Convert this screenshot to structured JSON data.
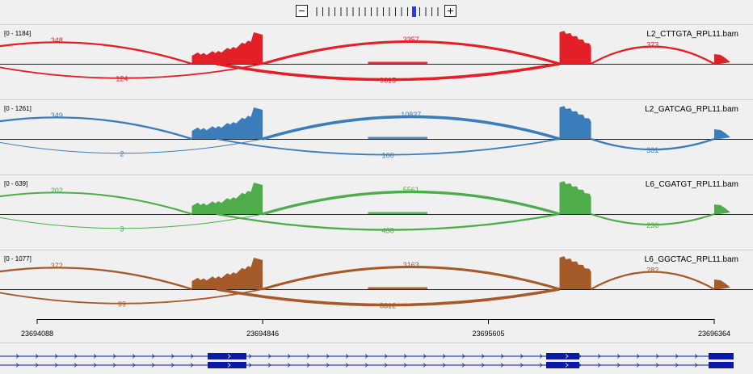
{
  "zoom": {
    "out_label": "−",
    "in_label": "+",
    "tick_count": 21,
    "current_level": 16,
    "accent": "#2a3dd6"
  },
  "tracks": [
    {
      "name": "L2_CTTGTA_RPL11.bam",
      "range": "[0 - 1184]",
      "color": "#e32028",
      "junctions_above": [
        {
          "label": "348",
          "from": 23693700,
          "to": 23694608
        },
        {
          "label": "3357",
          "from": 23694846,
          "to": 23695844
        },
        {
          "label": "373",
          "from": 23695950,
          "to": 23696364
        }
      ],
      "junctions_below": [
        {
          "label": "124",
          "from": 23693900,
          "to": 23694846
        },
        {
          "label": "9615",
          "from": 23694690,
          "to": 23695844
        }
      ]
    },
    {
      "name": "L2_GATCAG_RPL11.bam",
      "range": "[0 - 1261]",
      "color": "#3a7dba",
      "junctions_above": [
        {
          "label": "349",
          "from": 23693700,
          "to": 23694608
        },
        {
          "label": "10827",
          "from": 23694846,
          "to": 23695844
        }
      ],
      "junctions_below": [
        {
          "label": "2",
          "from": 23693900,
          "to": 23694846
        },
        {
          "label": "100",
          "from": 23694690,
          "to": 23695844
        },
        {
          "label": "331",
          "from": 23695950,
          "to": 23696364
        }
      ]
    },
    {
      "name": "L6_CGATGT_RPL11.bam",
      "range": "[0 - 639]",
      "color": "#4ead4a",
      "junctions_above": [
        {
          "label": "202",
          "from": 23693700,
          "to": 23694608
        },
        {
          "label": "5561",
          "from": 23694846,
          "to": 23695844
        }
      ],
      "junctions_below": [
        {
          "label": "3",
          "from": 23693900,
          "to": 23694846
        },
        {
          "label": "438",
          "from": 23694690,
          "to": 23695844
        },
        {
          "label": "236",
          "from": 23695950,
          "to": 23696364
        }
      ]
    },
    {
      "name": "L6_GGCTAC_RPL11.bam",
      "range": "[0 - 1077]",
      "color": "#a55a29",
      "junctions_above": [
        {
          "label": "372",
          "from": 23693700,
          "to": 23694608
        },
        {
          "label": "3163",
          "from": 23694846,
          "to": 23695844
        },
        {
          "label": "282",
          "from": 23695950,
          "to": 23696364
        }
      ],
      "junctions_below": [
        {
          "label": "99",
          "from": 23693900,
          "to": 23694846
        },
        {
          "label": "8312",
          "from": 23694690,
          "to": 23695844
        }
      ]
    }
  ],
  "ruler": {
    "ticks": [
      "23694088",
      "23694846",
      "23695605",
      "23696364"
    ],
    "start": 23693950,
    "end": 23696520
  },
  "gene": {
    "line_color": "#0a1a9c",
    "fill_color": "#0a1aa6"
  }
}
